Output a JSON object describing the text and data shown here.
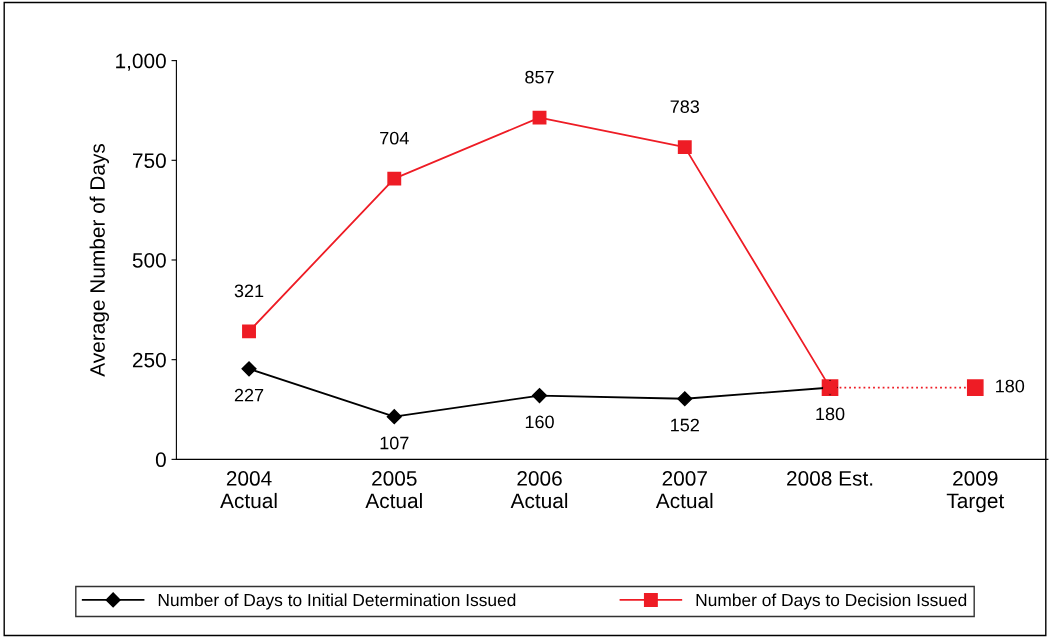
{
  "chart_data": {
    "type": "line",
    "ylabel": "Average Number of Days",
    "categories": [
      "2004\nActual",
      "2005\nActual",
      "2006\nActual",
      "2007\nActual",
      "2008 Est.",
      "2009\nTarget"
    ],
    "ylim": [
      0,
      1000
    ],
    "yticks": [
      0,
      250,
      500,
      {
        "value": 750,
        "label": "750"
      },
      {
        "value": 1000,
        "label": "1,000"
      }
    ],
    "grid": false,
    "legend": "bottom",
    "series": [
      {
        "name": "Number of Days to Initial Determination Issued",
        "color": "#000000",
        "marker": "diamond",
        "line_style": "solid",
        "values": [
          227,
          107,
          160,
          152,
          180,
          null
        ],
        "value_labels": [
          "227",
          "107",
          "160",
          "152",
          "180",
          null
        ]
      },
      {
        "name": "Number of Days to Decision Issued",
        "color": "#ee1c25",
        "marker": "square",
        "line_style": "solid",
        "values": [
          321,
          704,
          857,
          783,
          180,
          null
        ],
        "value_labels": [
          "321",
          "704",
          "857",
          "783",
          null,
          null
        ]
      },
      {
        "color": "#ee1c25",
        "marker": "square",
        "line_style": "dotted",
        "values": [
          null,
          null,
          null,
          null,
          180,
          180
        ],
        "value_labels": [
          null,
          null,
          null,
          null,
          null,
          "180"
        ]
      }
    ]
  }
}
